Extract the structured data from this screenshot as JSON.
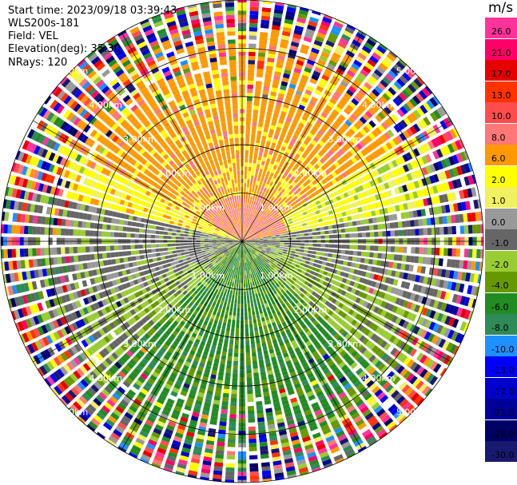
{
  "header": {
    "start_time": "Start time: 2023/09/18 03:39:43",
    "site": "WLS200s-181",
    "field": "Field: VEL",
    "elevation": "Elevation(deg): 35.30",
    "nrays": "NRays: 120"
  },
  "colorbar": {
    "unit": "m/s",
    "levels": [
      {
        "label": "26.0",
        "color": "#ff3399"
      },
      {
        "label": "21.0",
        "color": "#ff0066"
      },
      {
        "label": "17.0",
        "color": "#e60000"
      },
      {
        "label": "13.0",
        "color": "#ff3300"
      },
      {
        "label": "10.0",
        "color": "#ff4d4d"
      },
      {
        "label": "8.0",
        "color": "#ff7777"
      },
      {
        "label": "6.0",
        "color": "#ff9900"
      },
      {
        "label": "2.0",
        "color": "#ffff00"
      },
      {
        "label": "1.0",
        "color": "#f0f060"
      },
      {
        "label": "0.0",
        "color": "#999999"
      },
      {
        "label": "-1.0",
        "color": "#666666"
      },
      {
        "label": "-2.0",
        "color": "#99cc33"
      },
      {
        "label": "-4.0",
        "color": "#669900"
      },
      {
        "label": "-6.0",
        "color": "#228b22"
      },
      {
        "label": "-8.0",
        "color": "#2e8b57"
      },
      {
        "label": "-10.0",
        "color": "#1e90ff"
      },
      {
        "label": "-13.0",
        "color": "#0000ff"
      },
      {
        "label": "-17.0",
        "color": "#0000cc"
      },
      {
        "label": "-21.0",
        "color": "#000099"
      },
      {
        "label": "-26.0",
        "color": "#000066"
      },
      {
        "label": "-30.0",
        "color": "#191970"
      }
    ]
  },
  "chart_data": {
    "type": "heatmap",
    "plot_kind": "PPI polar velocity scan",
    "field": "VEL",
    "unit": "m/s",
    "nrays": 120,
    "range_max_km": 5.0,
    "range_rings_km": [
      1.0,
      2.0,
      3.0,
      4.0,
      5.0
    ],
    "ring_labels": [
      "1.00km",
      "2.00km",
      "3.00km",
      "4.00km",
      "5.00km"
    ],
    "grid": true,
    "velocity_pattern": {
      "north_half": "positive (2.0 to 8.0 m/s, orange/yellow)",
      "near_center_north": "6.0 to 10.0 m/s (salmon)",
      "east_west_band": "0.0 to -2.0 m/s (gray / yellow-green)",
      "south_half": "negative (-4.0 to -8.0 m/s, greens)",
      "beyond_about_4km": "noisy, values across full scale"
    }
  }
}
